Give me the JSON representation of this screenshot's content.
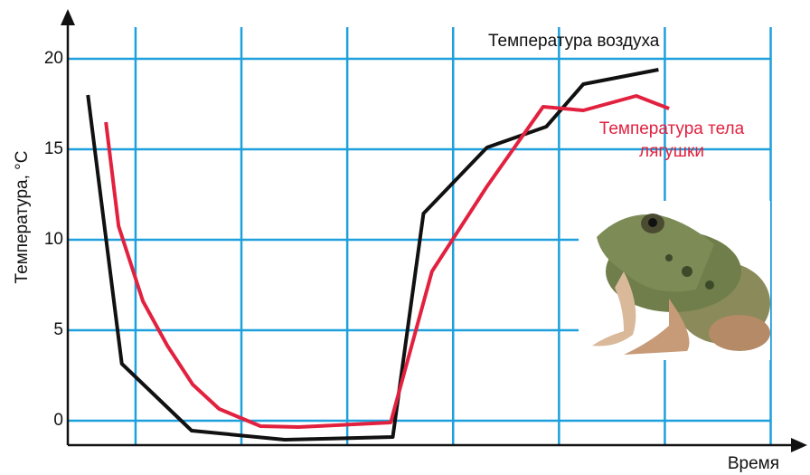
{
  "chart_data": {
    "type": "line",
    "ylabel": "Температура, °C",
    "xlabel": "Время",
    "xlim": [
      0.36,
      7.32
    ],
    "xticks": [
      1,
      2,
      3,
      4,
      5,
      6,
      7
    ],
    "ylim": [
      -1.35,
      22.65
    ],
    "yticks": [
      0,
      5,
      10,
      15,
      20
    ],
    "grid": true,
    "grid_color": "#1ea0dc",
    "series": [
      {
        "name": "Температура воздуха",
        "color": "#111111",
        "x": [
          0.55,
          0.87,
          1.53,
          2.41,
          3.43,
          3.72,
          4.32,
          4.88,
          5.23,
          5.94
        ],
        "values": [
          18,
          3.15,
          -0.55,
          -1.05,
          -0.9,
          11.45,
          15.1,
          16.25,
          18.6,
          19.4
        ]
      },
      {
        "name": "Температура тела лягушки",
        "color": "#e2213f",
        "x": [
          0.72,
          0.84,
          1.07,
          1.3,
          1.54,
          1.79,
          2.18,
          2.54,
          3.41,
          3.8,
          4.32,
          4.85,
          5.23,
          5.73,
          6.04
        ],
        "values": [
          16.5,
          10.75,
          6.6,
          4.15,
          2,
          0.65,
          -0.3,
          -0.35,
          -0.1,
          8.25,
          12.95,
          17.35,
          17.15,
          17.95,
          17.25
        ]
      }
    ]
  }
}
